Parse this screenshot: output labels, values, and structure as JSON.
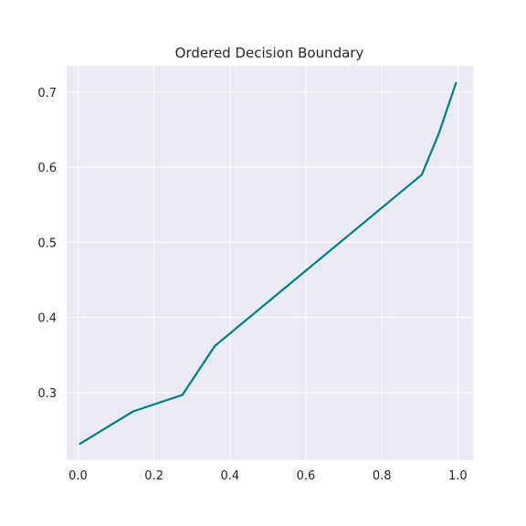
{
  "chart_data": {
    "type": "line",
    "title": "Ordered Decision Boundary",
    "xlabel": "",
    "ylabel": "",
    "xlim": [
      -0.03,
      1.04
    ],
    "ylim": [
      0.21,
      0.735
    ],
    "x_ticks": [
      0.0,
      0.2,
      0.4,
      0.6,
      0.8,
      1.0
    ],
    "x_tick_labels": [
      "0.0",
      "0.2",
      "0.4",
      "0.6",
      "0.8",
      "1.0"
    ],
    "y_ticks": [
      0.3,
      0.4,
      0.5,
      0.6,
      0.7
    ],
    "y_tick_labels": [
      "0.3",
      "0.4",
      "0.5",
      "0.6",
      "0.7"
    ],
    "grid": true,
    "background": "#eaeaf2",
    "grid_color": "#ffffff",
    "series": [
      {
        "color": "#008080",
        "x": [
          0.005,
          0.145,
          0.275,
          0.36,
          0.905,
          0.95,
          0.995
        ],
        "y": [
          0.232,
          0.275,
          0.297,
          0.362,
          0.59,
          0.645,
          0.712
        ]
      }
    ]
  }
}
